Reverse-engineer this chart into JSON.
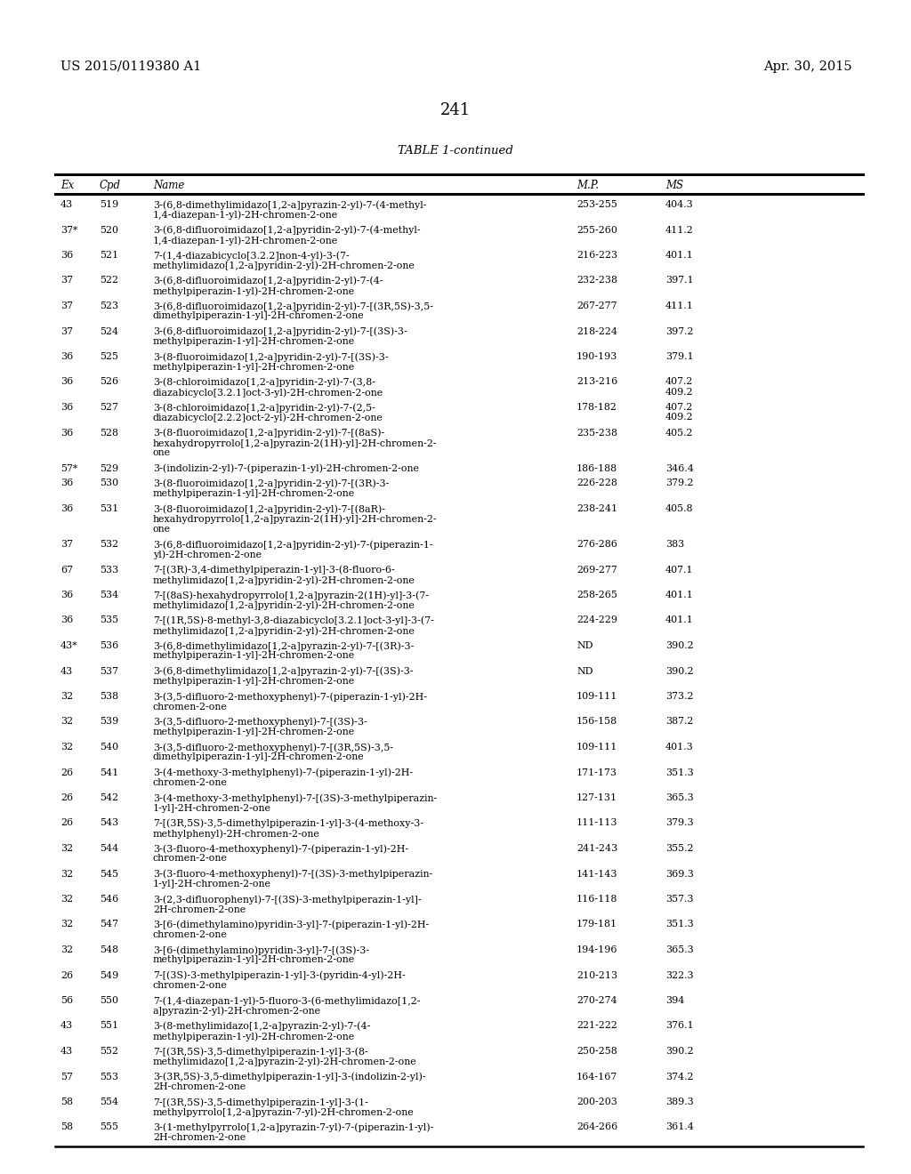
{
  "patent_number": "US 2015/0119380 A1",
  "patent_date": "Apr. 30, 2015",
  "page_number": "241",
  "table_title": "TABLE 1-continued",
  "headers": [
    "Ex",
    "Cpd",
    "Name",
    "M.P.",
    "MS"
  ],
  "rows": [
    [
      "43",
      "519",
      "3-(6,8-dimethylimidazo[1,2-a]pyrazin-2-yl)-7-(4-methyl-\n1,4-diazepan-1-yl)-2H-chromen-2-one",
      "253-255",
      "404.3"
    ],
    [
      "37*",
      "520",
      "3-(6,8-difluoroimidazo[1,2-a]pyridin-2-yl)-7-(4-methyl-\n1,4-diazepan-1-yl)-2H-chromen-2-one",
      "255-260",
      "411.2"
    ],
    [
      "36",
      "521",
      "7-(1,4-diazabicyclo[3.2.2]non-4-yl)-3-(7-\nmethylimidazo[1,2-a]pyridin-2-yl)-2H-chromen-2-one",
      "216-223",
      "401.1"
    ],
    [
      "37",
      "522",
      "3-(6,8-difluoroimidazo[1,2-a]pyridin-2-yl)-7-(4-\nmethylpiperazin-1-yl)-2H-chromen-2-one",
      "232-238",
      "397.1"
    ],
    [
      "37",
      "523",
      "3-(6,8-difluoroimidazo[1,2-a]pyridin-2-yl)-7-[(3R,5S)-3,5-\ndimethylpiperazin-1-yl]-2H-chromen-2-one",
      "267-277",
      "411.1"
    ],
    [
      "37",
      "524",
      "3-(6,8-difluoroimidazo[1,2-a]pyridin-2-yl)-7-[(3S)-3-\nmethylpiperazin-1-yl]-2H-chromen-2-one",
      "218-224",
      "397.2"
    ],
    [
      "36",
      "525",
      "3-(8-fluoroimidazo[1,2-a]pyridin-2-yl)-7-[(3S)-3-\nmethylpiperazin-1-yl]-2H-chromen-2-one",
      "190-193",
      "379.1"
    ],
    [
      "36",
      "526",
      "3-(8-chloroimidazo[1,2-a]pyridin-2-yl)-7-(3,8-\ndiazabicyclo[3.2.1]oct-3-yl)-2H-chromen-2-one",
      "213-216",
      "407.2\n409.2"
    ],
    [
      "36",
      "527",
      "3-(8-chloroimidazo[1,2-a]pyridin-2-yl)-7-(2,5-\ndiazabicyclo[2.2.2]oct-2-yl)-2H-chromen-2-one",
      "178-182",
      "407.2\n409.2"
    ],
    [
      "36",
      "528",
      "3-(8-fluoroimidazo[1,2-a]pyridin-2-yl)-7-[(8aS)-\nhexahydropyrrolo[1,2-a]pyrazin-2(1H)-yl]-2H-chromen-2-\none",
      "235-238",
      "405.2"
    ],
    [
      "57*",
      "529",
      "3-(indolizin-2-yl)-7-(piperazin-1-yl)-2H-chromen-2-one",
      "186-188",
      "346.4"
    ],
    [
      "36",
      "530",
      "3-(8-fluoroimidazo[1,2-a]pyridin-2-yl)-7-[(3R)-3-\nmethylpiperazin-1-yl]-2H-chromen-2-one",
      "226-228",
      "379.2"
    ],
    [
      "36",
      "531",
      "3-(8-fluoroimidazo[1,2-a]pyridin-2-yl)-7-[(8aR)-\nhexahydropyrrolo[1,2-a]pyrazin-2(1H)-yl]-2H-chromen-2-\none",
      "238-241",
      "405.8"
    ],
    [
      "37",
      "532",
      "3-(6,8-difluoroimidazo[1,2-a]pyridin-2-yl)-7-(piperazin-1-\nyl)-2H-chromen-2-one",
      "276-286",
      "383"
    ],
    [
      "67",
      "533",
      "7-[(3R)-3,4-dimethylpiperazin-1-yl]-3-(8-fluoro-6-\nmethylimidazo[1,2-a]pyridin-2-yl)-2H-chromen-2-one",
      "269-277",
      "407.1"
    ],
    [
      "36",
      "534",
      "7-[(8aS)-hexahydropyrrolo[1,2-a]pyrazin-2(1H)-yl]-3-(7-\nmethylimidazo[1,2-a]pyridin-2-yl)-2H-chromen-2-one",
      "258-265",
      "401.1"
    ],
    [
      "36",
      "535",
      "7-[(1R,5S)-8-methyl-3,8-diazabicyclo[3.2.1]oct-3-yl]-3-(7-\nmethylimidazo[1,2-a]pyridin-2-yl)-2H-chromen-2-one",
      "224-229",
      "401.1"
    ],
    [
      "43*",
      "536",
      "3-(6,8-dimethylimidazo[1,2-a]pyrazin-2-yl)-7-[(3R)-3-\nmethylpiperazin-1-yl]-2H-chromen-2-one",
      "ND",
      "390.2"
    ],
    [
      "43",
      "537",
      "3-(6,8-dimethylimidazo[1,2-a]pyrazin-2-yl)-7-[(3S)-3-\nmethylpiperazin-1-yl]-2H-chromen-2-one",
      "ND",
      "390.2"
    ],
    [
      "32",
      "538",
      "3-(3,5-difluoro-2-methoxyphenyl)-7-(piperazin-1-yl)-2H-\nchromen-2-one",
      "109-111",
      "373.2"
    ],
    [
      "32",
      "539",
      "3-(3,5-difluoro-2-methoxyphenyl)-7-[(3S)-3-\nmethylpiperazin-1-yl]-2H-chromen-2-one",
      "156-158",
      "387.2"
    ],
    [
      "32",
      "540",
      "3-(3,5-difluoro-2-methoxyphenyl)-7-[(3R,5S)-3,5-\ndimethylpiperazin-1-yl]-2H-chromen-2-one",
      "109-111",
      "401.3"
    ],
    [
      "26",
      "541",
      "3-(4-methoxy-3-methylphenyl)-7-(piperazin-1-yl)-2H-\nchromen-2-one",
      "171-173",
      "351.3"
    ],
    [
      "26",
      "542",
      "3-(4-methoxy-3-methylphenyl)-7-[(3S)-3-methylpiperazin-\n1-yl]-2H-chromen-2-one",
      "127-131",
      "365.3"
    ],
    [
      "26",
      "543",
      "7-[(3R,5S)-3,5-dimethylpiperazin-1-yl]-3-(4-methoxy-3-\nmethylphenyl)-2H-chromen-2-one",
      "111-113",
      "379.3"
    ],
    [
      "32",
      "544",
      "3-(3-fluoro-4-methoxyphenyl)-7-(piperazin-1-yl)-2H-\nchromen-2-one",
      "241-243",
      "355.2"
    ],
    [
      "32",
      "545",
      "3-(3-fluoro-4-methoxyphenyl)-7-[(3S)-3-methylpiperazin-\n1-yl]-2H-chromen-2-one",
      "141-143",
      "369.3"
    ],
    [
      "32",
      "546",
      "3-(2,3-difluorophenyl)-7-[(3S)-3-methylpiperazin-1-yl]-\n2H-chromen-2-one",
      "116-118",
      "357.3"
    ],
    [
      "32",
      "547",
      "3-[6-(dimethylamino)pyridin-3-yl]-7-(piperazin-1-yl)-2H-\nchromen-2-one",
      "179-181",
      "351.3"
    ],
    [
      "32",
      "548",
      "3-[6-(dimethylamino)pyridin-3-yl]-7-[(3S)-3-\nmethylpiperazin-1-yl]-2H-chromen-2-one",
      "194-196",
      "365.3"
    ],
    [
      "26",
      "549",
      "7-[(3S)-3-methylpiperazin-1-yl]-3-(pyridin-4-yl)-2H-\nchromen-2-one",
      "210-213",
      "322.3"
    ],
    [
      "56",
      "550",
      "7-(1,4-diazepan-1-yl)-5-fluoro-3-(6-methylimidazo[1,2-\na]pyrazin-2-yl)-2H-chromen-2-one",
      "270-274",
      "394"
    ],
    [
      "43",
      "551",
      "3-(8-methylimidazo[1,2-a]pyrazin-2-yl)-7-(4-\nmethylpiperazin-1-yl)-2H-chromen-2-one",
      "221-222",
      "376.1"
    ],
    [
      "43",
      "552",
      "7-[(3R,5S)-3,5-dimethylpiperazin-1-yl]-3-(8-\nmethylimidazo[1,2-a]pyrazin-2-yl)-2H-chromen-2-one",
      "250-258",
      "390.2"
    ],
    [
      "57",
      "553",
      "3-(3R,5S)-3,5-dimethylpiperazin-1-yl]-3-(indolizin-2-yl)-\n2H-chromen-2-one",
      "164-167",
      "374.2"
    ],
    [
      "58",
      "554",
      "7-[(3R,5S)-3,5-dimethylpiperazin-1-yl]-3-(1-\nmethylpyrrolo[1,2-a]pyrazin-7-yl)-2H-chromen-2-one",
      "200-203",
      "389.3"
    ],
    [
      "58",
      "555",
      "3-(1-methylpyrrolo[1,2-a]pyrazin-7-yl)-7-(piperazin-1-yl)-\n2H-chromen-2-one",
      "264-266",
      "361.4"
    ]
  ]
}
